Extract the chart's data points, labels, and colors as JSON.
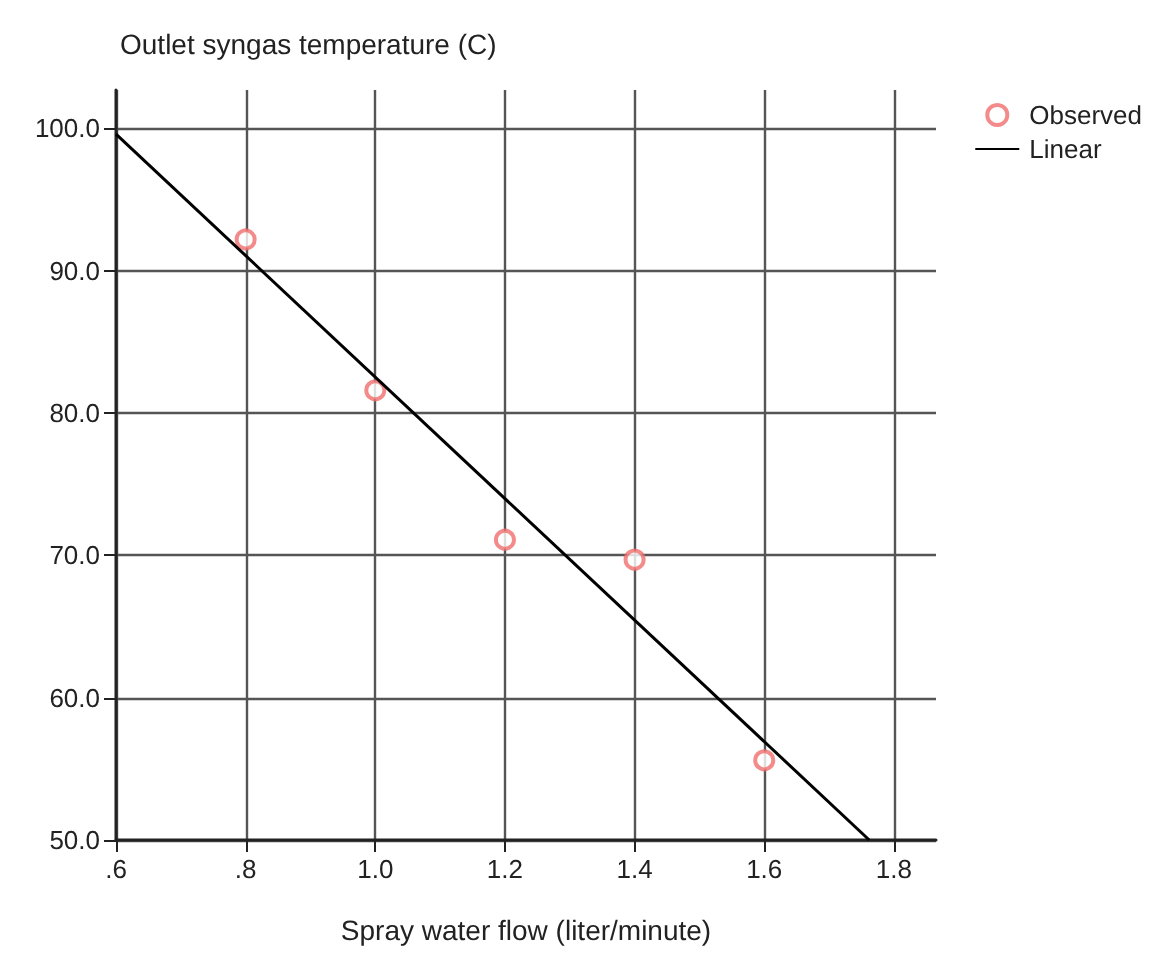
{
  "chart_data": {
    "type": "scatter",
    "ylabel": "Outlet syngas temperature (C)",
    "xlabel": "Spray water flow (liter/minute)",
    "x": [
      0.8,
      1.0,
      1.2,
      1.4,
      1.6
    ],
    "series": [
      {
        "name": "Observed",
        "type": "scatter",
        "color": "#f06e6e",
        "marker": "circle",
        "values": [
          92.2,
          81.6,
          71.1,
          69.7,
          55.6
        ]
      },
      {
        "name": "Linear",
        "type": "line",
        "color": "#000000",
        "marker": "none",
        "line_style": "solid",
        "x": [
          0.6,
          1.762
        ],
        "values": [
          99.6,
          50.0
        ]
      }
    ],
    "xlim": [
      0.6,
      1.865
    ],
    "ylim": [
      50,
      102.7
    ],
    "xticks": [
      {
        "value": 0.6,
        "label": ".6"
      },
      {
        "value": 0.8,
        "label": ".8"
      },
      {
        "value": 1.0,
        "label": "1.0"
      },
      {
        "value": 1.2,
        "label": "1.2"
      },
      {
        "value": 1.4,
        "label": "1.4"
      },
      {
        "value": 1.6,
        "label": "1.6"
      },
      {
        "value": 1.8,
        "label": "1.8"
      }
    ],
    "yticks": [
      {
        "value": 50,
        "label": "50.0"
      },
      {
        "value": 60,
        "label": "60.0"
      },
      {
        "value": 70,
        "label": "70.0"
      },
      {
        "value": 80,
        "label": "80.0"
      },
      {
        "value": 90,
        "label": "90.0"
      },
      {
        "value": 100,
        "label": "100.0"
      }
    ],
    "grid": true,
    "legend": "top right"
  }
}
